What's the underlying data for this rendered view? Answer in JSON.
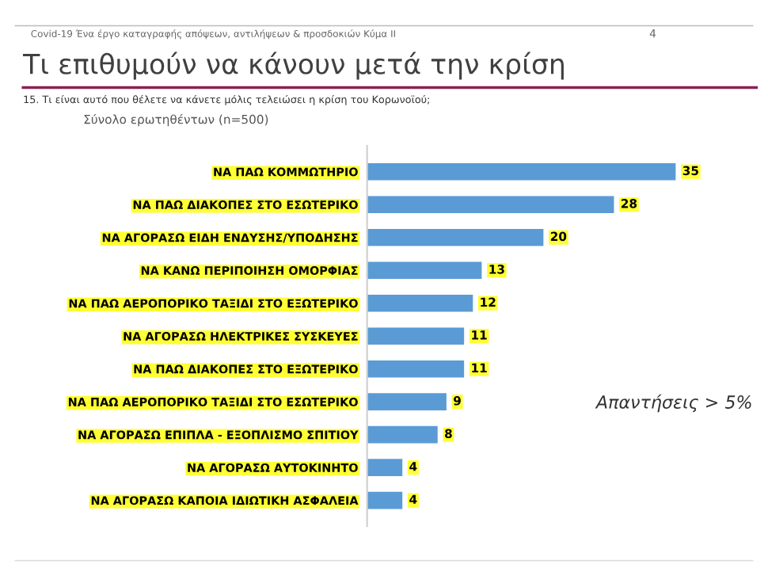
{
  "chart_data": {
    "type": "bar",
    "orientation": "horizontal",
    "title": "Τι επιθυμούν να κάνουν μετά την κρίση",
    "subtitle": "15. Τι είναι αυτό που θέλετε να κάνετε μόλις τελειώσει η κρίση του Κορωνοϊού;",
    "ylabel": "Σύνολο ερωτηθέντων (n=500)",
    "annotations": [
      "Covid-19 Ένα έργο καταγραφής απόψεων, αντιλήψεων & προσδοκιών Κύμα II",
      "4",
      "Απαντήσεις > 5%"
    ],
    "categories": [
      "ΝΑ ΠΑΩ ΚΟΜΜΩΤΗΡΙΟ",
      "ΝΑ ΠΑΩ ΔΙΑΚΟΠΕΣ ΣΤΟ ΕΣΩΤΕΡΙΚΟ",
      "ΝΑ ΑΓΟΡΑΣΩ ΕΙΔΗ ΕΝΔΥΣΗΣ/ΥΠΟΔΗΣΗΣ",
      "ΝΑ ΚΑΝΩ ΠΕΡΙΠΟΙΗΣΗ ΟΜΟΡΦΙΑΣ",
      "ΝΑ ΠΑΩ ΑΕΡΟΠΟΡΙΚΟ ΤΑΞΙΔΙ ΣΤΟ ΕΞΩΤΕΡΙΚΟ",
      "ΝΑ ΑΓΟΡΑΣΩ ΗΛΕΚΤΡΙΚΕΣ ΣΥΣΚΕΥΕΣ",
      "ΝΑ ΠΑΩ ΔΙΑΚΟΠΕΣ ΣΤΟ ΕΞΩΤΕΡΙΚΟ",
      "ΝΑ ΠΑΩ ΑΕΡΟΠΟΡΙΚΟ ΤΑΞΙΔΙ ΣΤΟ ΕΣΩΤΕΡΙΚΟ",
      "ΝΑ ΑΓΟΡΑΣΩ ΕΠΙΠΛΑ - ΕΞΟΠΛΙΣΜΟ ΣΠΙΤΙΟΥ",
      "ΝΑ ΑΓΟΡΑΣΩ ΑΥΤΟΚΙΝΗΤΟ",
      "ΝΑ ΑΓΟΡΑΣΩ ΚΑΠΟΙΑ ΙΔΙΩΤΙΚΗ ΑΣΦΑΛΕΙΑ"
    ],
    "values": [
      35,
      28,
      20,
      13,
      12,
      11,
      11,
      9,
      8,
      4,
      4
    ],
    "color": "#5b9bd5",
    "data_labels": true,
    "grid": false,
    "legend": false
  }
}
